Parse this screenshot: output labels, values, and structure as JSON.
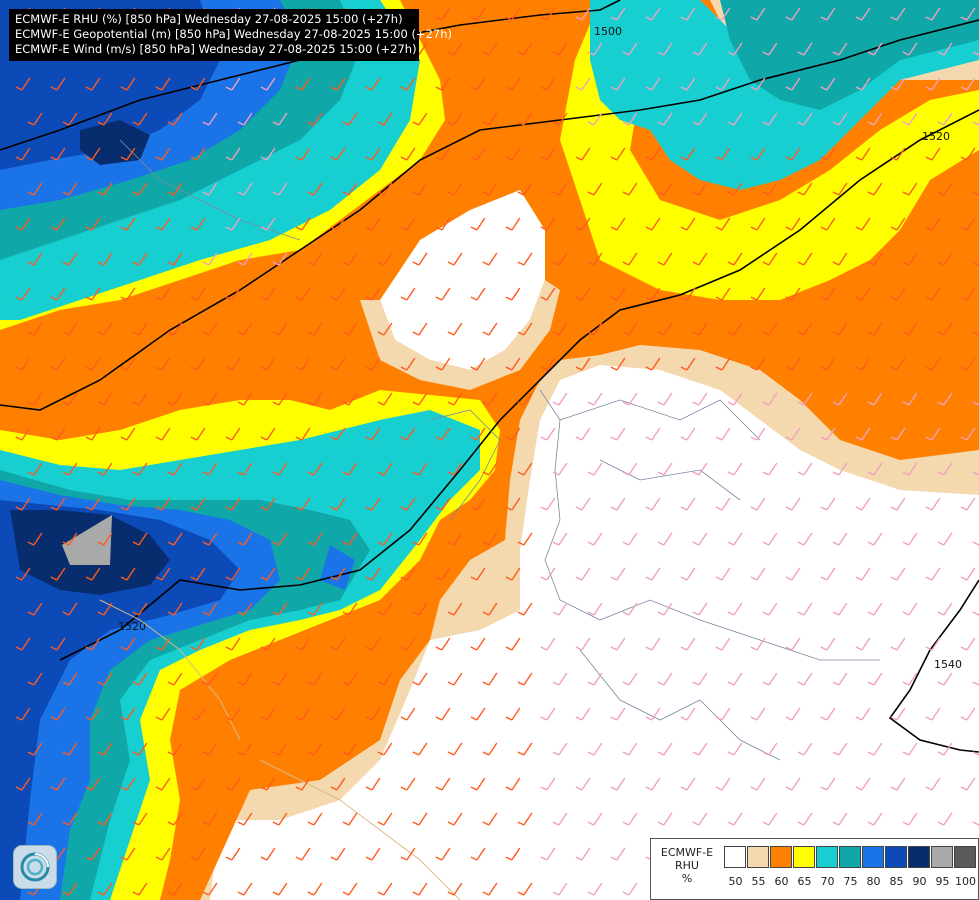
{
  "header": {
    "lines": [
      "ECMWF-E RHU (%) [850 hPa] Wednesday 27-08-2025 15:00 (+27h)",
      "ECMWF-E Geopotential (m) [850 hPa] Wednesday 27-08-2025 15:00 (+27h)",
      "ECMWF-E Wind (m/s) [850 hPa] Wednesday 27-08-2025 15:00 (+27h)"
    ]
  },
  "contours": {
    "labels": [
      "1500",
      "1520",
      "1520",
      "1540"
    ]
  },
  "legend": {
    "title_lines": [
      "ECMWF-E",
      "RHU",
      "%"
    ],
    "ticks": [
      "50",
      "55",
      "60",
      "65",
      "70",
      "75",
      "80",
      "85",
      "90",
      "95",
      "100"
    ],
    "colors": [
      "#ffffff",
      "#f5d9ae",
      "#ff8000",
      "#ffff00",
      "#17cfd1",
      "#10a7a8",
      "#1a74e8",
      "#0c4ab8",
      "#072d6e",
      "#a9a9a9",
      "#5a5a5a"
    ]
  },
  "logo": {
    "icon": "ecmwf-logo-icon"
  }
}
